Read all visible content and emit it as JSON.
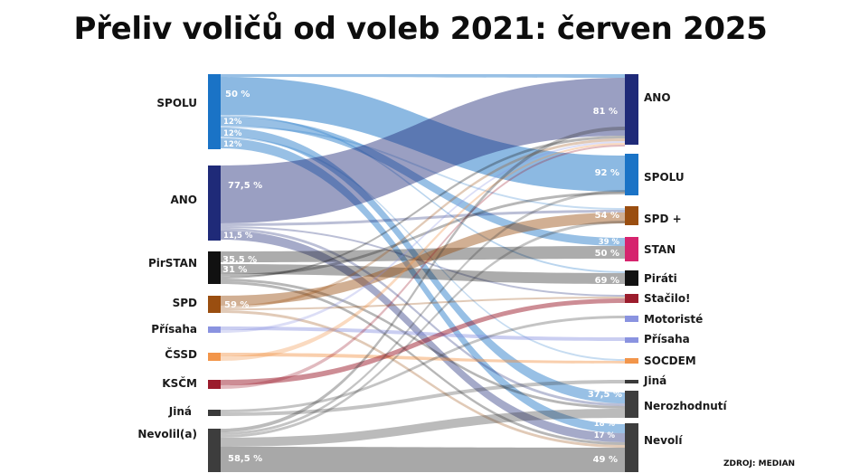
{
  "title": "Přeliv voličů od voleb 2021: červen 2025",
  "source": "ZDROJ: MEDIAN",
  "chart_data": {
    "type": "sankey",
    "units": "%",
    "left_nodes": [
      {
        "id": "SPOLU",
        "label": "SPOLU",
        "color": "#1a73c6"
      },
      {
        "id": "ANO",
        "label": "ANO",
        "color": "#1f2a78"
      },
      {
        "id": "PirSTAN",
        "label": "PirSTAN",
        "color": "#111111"
      },
      {
        "id": "SPD",
        "label": "SPD",
        "color": "#9a4e10"
      },
      {
        "id": "Prisaha",
        "label": "Přísaha",
        "color": "#8a93e0"
      },
      {
        "id": "CSSD",
        "label": "ČSSD",
        "color": "#f2954a"
      },
      {
        "id": "KSCM",
        "label": "KSČM",
        "color": "#9b1c2c"
      },
      {
        "id": "Jina",
        "label": "Jiná",
        "color": "#3a3a3a"
      },
      {
        "id": "Nevolil",
        "label": "Nevolil(a)",
        "color": "#3d3d3d"
      }
    ],
    "right_nodes": [
      {
        "id": "ANO",
        "label": "ANO",
        "color": "#1f2a78"
      },
      {
        "id": "SPOLU",
        "label": "SPOLU",
        "color": "#1a73c6"
      },
      {
        "id": "SPD",
        "label": "SPD +",
        "color": "#9a4e10"
      },
      {
        "id": "STAN",
        "label": "STAN",
        "color": "#d6246e"
      },
      {
        "id": "Pirati",
        "label": "Piráti",
        "color": "#111111"
      },
      {
        "id": "Stacilo",
        "label": "Stačilo!",
        "color": "#9b1c2c"
      },
      {
        "id": "Motoriste",
        "label": "Motoristé",
        "color": "#8a93e0"
      },
      {
        "id": "Prisaha",
        "label": "Přísaha",
        "color": "#8a93e0"
      },
      {
        "id": "SOCDEM",
        "label": "SOCDEM",
        "color": "#f2954a"
      },
      {
        "id": "Jina",
        "label": "Jiná",
        "color": "#3a3a3a"
      },
      {
        "id": "Nerozhodnuti",
        "label": "Nerozhodnutí",
        "color": "#3d3d3d"
      },
      {
        "id": "Nevoli",
        "label": "Nevolí",
        "color": "#3d3d3d"
      }
    ],
    "source_share_labels": [
      {
        "node": "SPOLU",
        "value": "50 %"
      },
      {
        "node": "SPOLU",
        "value": "12%"
      },
      {
        "node": "SPOLU",
        "value": "12%"
      },
      {
        "node": "SPOLU",
        "value": "12%"
      },
      {
        "node": "ANO",
        "value": "77,5 %"
      },
      {
        "node": "ANO",
        "value": "11,5 %"
      },
      {
        "node": "PirSTAN",
        "value": "35,5 %"
      },
      {
        "node": "PirSTAN",
        "value": "31 %"
      },
      {
        "node": "SPD",
        "value": "59 %"
      },
      {
        "node": "Nevolil",
        "value": "58,5 %"
      }
    ],
    "target_share_labels": [
      {
        "node": "ANO",
        "value": "81 %"
      },
      {
        "node": "SPOLU",
        "value": "92 %"
      },
      {
        "node": "SPD",
        "value": "54 %"
      },
      {
        "node": "STAN",
        "value": "39 %"
      },
      {
        "node": "STAN",
        "value": "50 %"
      },
      {
        "node": "Pirati",
        "value": "69 %"
      },
      {
        "node": "Nerozhodnuti",
        "value": "37,5 %"
      },
      {
        "node": "Nevoli",
        "value": "18 %"
      },
      {
        "node": "Nevoli",
        "value": "17 %"
      },
      {
        "node": "Nevoli",
        "value": "49 %"
      }
    ],
    "labeled_flows": [
      {
        "from": "SPOLU",
        "to": "SPOLU",
        "source_share": 50,
        "target_share": 92
      },
      {
        "from": "SPOLU",
        "to": "STAN",
        "source_share": 12,
        "target_share": 39
      },
      {
        "from": "SPOLU",
        "to": "Nerozhodnuti",
        "source_share": 12
      },
      {
        "from": "SPOLU",
        "to": "Nevoli",
        "source_share": 12,
        "target_share": 18
      },
      {
        "from": "ANO",
        "to": "ANO",
        "source_share": 77.5,
        "target_share": 81
      },
      {
        "from": "ANO",
        "to": "Nevoli",
        "source_share": 11.5,
        "target_share": 17
      },
      {
        "from": "PirSTAN",
        "to": "STAN",
        "source_share": 35.5,
        "target_share": 50
      },
      {
        "from": "PirSTAN",
        "to": "Pirati",
        "source_share": 31,
        "target_share": 69
      },
      {
        "from": "SPD",
        "to": "SPD",
        "source_share": 59,
        "target_share": 54
      },
      {
        "from": "Nevolil",
        "to": "Nevoli",
        "source_share": 58.5,
        "target_share": 49
      },
      {
        "from": "Nevolil",
        "to": "Nerozhodnuti",
        "target_share": 37.5
      }
    ],
    "colors": {
      "SPOLU": "#1a73c6",
      "ANO": "#1f2a78",
      "PirSTAN": "#111111",
      "SPD": "#9a4e10",
      "STAN": "#d6246e",
      "Stacilo": "#9b1c2c",
      "Prisaha": "#8a93e0",
      "SOCDEM": "#f2954a",
      "Nevolil": "#3d3d3d"
    }
  }
}
